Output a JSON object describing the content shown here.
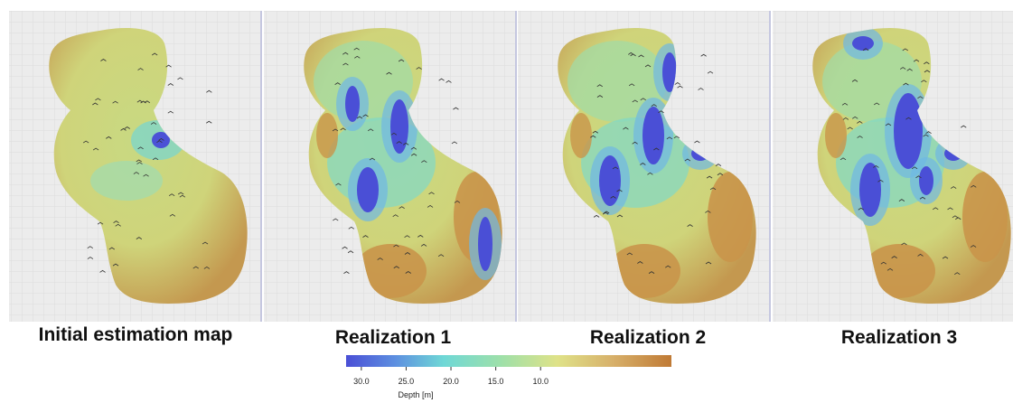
{
  "panels": [
    {
      "label": "Initial estimation map"
    },
    {
      "label": "Realization 1"
    },
    {
      "label": "Realization 2"
    },
    {
      "label": "Realization 3"
    }
  ],
  "colorbar": {
    "label": "Depth [m]",
    "range": [
      31.7,
      -4.6
    ],
    "ticks": [
      {
        "value": 30,
        "label": "30.0"
      },
      {
        "value": 25,
        "label": "25.0"
      },
      {
        "value": 20,
        "label": "20.0"
      },
      {
        "value": 15,
        "label": "15.0"
      },
      {
        "value": 10,
        "label": "10.0"
      }
    ]
  }
}
